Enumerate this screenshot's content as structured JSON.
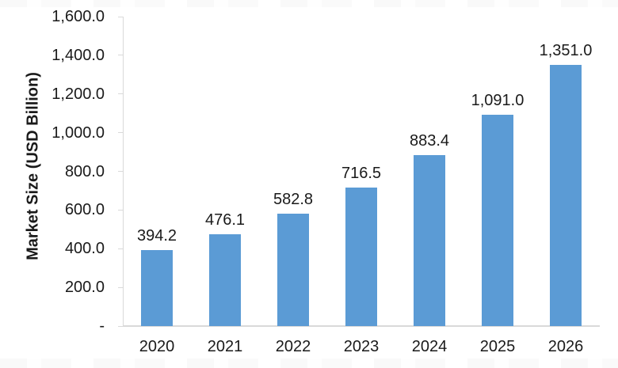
{
  "chart_data": {
    "type": "bar",
    "title": "",
    "xlabel": "",
    "ylabel": "Market Size (USD Billion)",
    "categories": [
      "2020",
      "2021",
      "2022",
      "2023",
      "2024",
      "2025",
      "2026"
    ],
    "values": [
      394.2,
      476.1,
      582.8,
      716.5,
      883.4,
      1091.0,
      1351.0
    ],
    "data_labels": [
      "394.2",
      "476.1",
      "582.8",
      "716.5",
      "883.4",
      "1,091.0",
      "1,351.0"
    ],
    "ylim": [
      0,
      1600
    ],
    "ytick_step": 200,
    "ytick_labels": [
      "-",
      "200.0",
      "400.0",
      "600.0",
      "800.0",
      "1,000.0",
      "1,200.0",
      "1,400.0",
      "1,600.0"
    ],
    "grid": false,
    "legend": "none",
    "bar_color": "#5B9BD5",
    "axis_color": "#D9D9D9",
    "text_color": "#1A1A1A"
  }
}
